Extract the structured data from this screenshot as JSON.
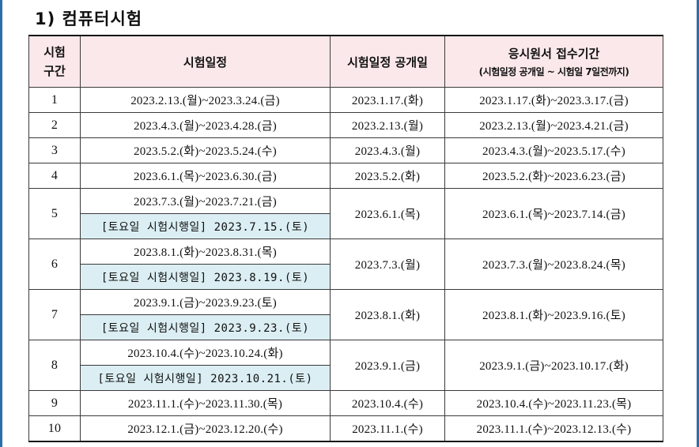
{
  "section_title": "1) 컴퓨터시험",
  "headers": {
    "session_line1": "시험",
    "session_line2": "구간",
    "exam_dates": "시험일정",
    "announce": "시험일정 공개일",
    "application": "응시원서 접수기간",
    "application_sub": "(시험일정 공개일 ~ 시험일 7일전까지)"
  },
  "rows": [
    {
      "session": "1",
      "exam": "2023.2.13.(월)~2023.3.24.(금)",
      "announce": "2023.1.17.(화)",
      "apply": "2023.1.17.(화)~2023.3.17.(금)"
    },
    {
      "session": "2",
      "exam": "2023.4.3.(월)~2023.4.28.(금)",
      "announce": "2023.2.13.(월)",
      "apply": "2023.2.13.(월)~2023.4.21.(금)"
    },
    {
      "session": "3",
      "exam": "2023.5.2.(화)~2023.5.24.(수)",
      "announce": "2023.4.3.(월)",
      "apply": "2023.4.3.(월)~2023.5.17.(수)"
    },
    {
      "session": "4",
      "exam": "2023.6.1.(목)~2023.6.30.(금)",
      "announce": "2023.5.2.(화)",
      "apply": "2023.5.2.(화)~2023.6.23.(금)"
    },
    {
      "session": "5",
      "exam": "2023.7.3.(월)~2023.7.21.(금)",
      "saturday": "[토요일 시험시행일] 2023.7.15.(토)",
      "announce": "2023.6.1.(목)",
      "apply": "2023.6.1.(목)~2023.7.14.(금)"
    },
    {
      "session": "6",
      "exam": "2023.8.1.(화)~2023.8.31.(목)",
      "saturday": "[토요일 시험시행일] 2023.8.19.(토)",
      "announce": "2023.7.3.(월)",
      "apply": "2023.7.3.(월)~2023.8.24.(목)"
    },
    {
      "session": "7",
      "exam": "2023.9.1.(금)~2023.9.23.(토)",
      "saturday": "[토요일 시험시행일] 2023.9.23.(토)",
      "announce": "2023.8.1.(화)",
      "apply": "2023.8.1.(화)~2023.9.16.(토)"
    },
    {
      "session": "8",
      "exam": "2023.10.4.(수)~2023.10.24.(화)",
      "saturday": "[토요일 시험시행일] 2023.10.21.(토)",
      "announce": "2023.9.1.(금)",
      "apply": "2023.9.1.(금)~2023.10.17.(화)"
    },
    {
      "session": "9",
      "exam": "2023.11.1.(수)~2023.11.30.(목)",
      "announce": "2023.10.4.(수)",
      "apply": "2023.10.4.(수)~2023.11.23.(목)"
    },
    {
      "session": "10",
      "exam": "2023.12.1.(금)~2023.12.20.(수)",
      "announce": "2023.11.1.(수)",
      "apply": "2023.11.1.(수)~2023.12.13.(수)"
    }
  ]
}
